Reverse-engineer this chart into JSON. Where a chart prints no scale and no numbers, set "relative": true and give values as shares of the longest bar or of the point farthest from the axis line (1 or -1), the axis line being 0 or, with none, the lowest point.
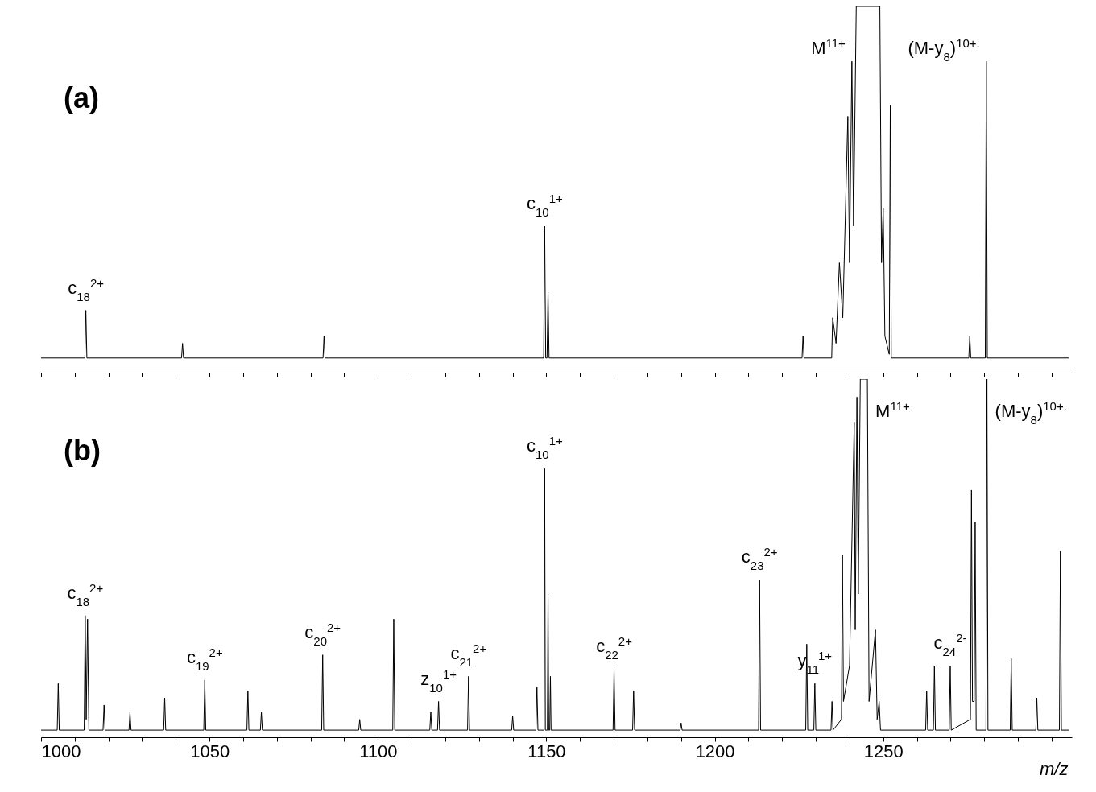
{
  "chart_data": [
    {
      "type": "line",
      "title": "(a)",
      "relative": true,
      "grid": false,
      "legend": false,
      "tick_labels": false,
      "xlim": [
        1000,
        1306
      ],
      "xticks": [
        1000,
        {
          "value": 1010,
          "label": null
        },
        {
          "value": 1020,
          "label": null
        },
        {
          "value": 1030,
          "label": null
        },
        {
          "value": 1040,
          "label": null
        },
        1050,
        {
          "value": 1060,
          "label": null
        },
        {
          "value": 1070,
          "label": null
        },
        {
          "value": 1080,
          "label": null
        },
        {
          "value": 1090,
          "label": null
        },
        1100,
        {
          "value": 1110,
          "label": null
        },
        {
          "value": 1120,
          "label": null
        },
        {
          "value": 1130,
          "label": null
        },
        {
          "value": 1140,
          "label": null
        },
        1150,
        {
          "value": 1160,
          "label": null
        },
        {
          "value": 1170,
          "label": null
        },
        {
          "value": 1180,
          "label": null
        },
        {
          "value": 1190,
          "label": null
        },
        1200,
        {
          "value": 1210,
          "label": null
        },
        {
          "value": 1220,
          "label": null
        },
        {
          "value": 1230,
          "label": null
        },
        {
          "value": 1240,
          "label": null
        },
        1250,
        {
          "value": 1260,
          "label": null
        },
        {
          "value": 1270,
          "label": null
        },
        {
          "value": 1280,
          "label": null
        },
        {
          "value": 1290,
          "label": null
        },
        {
          "value": 1300,
          "label": null
        }
      ],
      "series": [
        {
          "color": "#000000",
          "x": [
            1000,
            1013,
            1013.3,
            1013.6,
            1041.7,
            1042,
            1042.3,
            1083.7,
            1084,
            1084.3,
            1149.2,
            1149.5,
            1149.8,
            1150.2,
            1150.5,
            1150.8,
            1225.9,
            1226.2,
            1226.5,
            1234.7,
            1235,
            1236,
            1237,
            1238,
            1239.5,
            1240,
            1240.7,
            1241.2,
            1242,
            1249,
            1249.5,
            1250,
            1250.5,
            1251.8,
            1252.1,
            1252.4,
            1275.4,
            1275.7,
            1276,
            1280.3,
            1280.6,
            1280.9,
            1305
          ],
          "values": [
            0.04,
            0.04,
            0.17,
            0.04,
            0.04,
            0.08,
            0.04,
            0.04,
            0.1,
            0.04,
            0.04,
            0.4,
            0.04,
            0.04,
            0.22,
            0.04,
            0.04,
            0.1,
            0.04,
            0.04,
            0.15,
            0.08,
            0.3,
            0.15,
            0.7,
            0.3,
            0.85,
            0.4,
            1,
            1,
            0.3,
            0.45,
            0.1,
            0.05,
            0.73,
            0.04,
            0.04,
            0.1,
            0.04,
            0.04,
            0.85,
            0.04,
            0.04
          ]
        }
      ],
      "annotations": [
        {
          "text": "c$_{18}$$^{2+}$",
          "x": 1013.3,
          "y": 0.17
        },
        {
          "text": "c$_{10}$$^{1+}$",
          "x": 1149.5,
          "y": 0.4
        },
        {
          "text": "M$^{11+}$",
          "x": 1240.7,
          "y": 0.85
        },
        {
          "text": "(M-y$_{8}$)$^{10+.}$",
          "x": 1280.6,
          "y": 0.85
        }
      ]
    },
    {
      "type": "line",
      "title": "(b)",
      "relative": true,
      "grid": false,
      "legend": false,
      "tick_labels": "x",
      "xlabel": "m/z",
      "xlim": [
        1000,
        1306
      ],
      "xticks": [
        1000,
        {
          "value": 1010,
          "label": null
        },
        {
          "value": 1020,
          "label": null
        },
        {
          "value": 1030,
          "label": null
        },
        {
          "value": 1040,
          "label": null
        },
        1050,
        {
          "value": 1060,
          "label": null
        },
        {
          "value": 1070,
          "label": null
        },
        {
          "value": 1080,
          "label": null
        },
        {
          "value": 1090,
          "label": null
        },
        1100,
        {
          "value": 1110,
          "label": null
        },
        {
          "value": 1120,
          "label": null
        },
        {
          "value": 1130,
          "label": null
        },
        {
          "value": 1140,
          "label": null
        },
        1150,
        {
          "value": 1160,
          "label": null
        },
        {
          "value": 1170,
          "label": null
        },
        {
          "value": 1180,
          "label": null
        },
        {
          "value": 1190,
          "label": null
        },
        1200,
        {
          "value": 1210,
          "label": null
        },
        {
          "value": 1220,
          "label": null
        },
        {
          "value": 1230,
          "label": null
        },
        {
          "value": 1240,
          "label": null
        },
        1250,
        {
          "value": 1260,
          "label": null
        },
        {
          "value": 1270,
          "label": null
        },
        {
          "value": 1280,
          "label": null
        },
        {
          "value": 1290,
          "label": null
        },
        {
          "value": 1300,
          "label": null
        }
      ],
      "series": [
        {
          "color": "#000000",
          "x": [
            1000,
            1004.8,
            1005.1,
            1005.4,
            1012.8,
            1013.1,
            1013.4,
            1013.8,
            1014.2,
            1018.4,
            1018.7,
            1019,
            1026.1,
            1026.4,
            1026.7,
            1036.4,
            1036.7,
            1037,
            1048.3,
            1048.6,
            1048.9,
            1061.1,
            1061.4,
            1061.7,
            1065.1,
            1065.4,
            1065.7,
            1083.3,
            1083.6,
            1083.9,
            1094.3,
            1094.6,
            1094.9,
            1104.4,
            1104.7,
            1105,
            1115.4,
            1115.7,
            1116,
            1117.7,
            1118,
            1118.3,
            1126.6,
            1126.9,
            1127.2,
            1139.7,
            1140,
            1140.3,
            1146.9,
            1147.2,
            1147.5,
            1149.3,
            1149.5,
            1149.7,
            1150.3,
            1150.5,
            1150.7,
            1151,
            1151.2,
            1151.4,
            1169.8,
            1170.1,
            1170.4,
            1175.6,
            1175.9,
            1176.2,
            1189.7,
            1190,
            1190.3,
            1213,
            1213.3,
            1213.6,
            1227,
            1227.3,
            1227.6,
            1229.4,
            1229.7,
            1230,
            1234.5,
            1234.8,
            1235.1,
            1237.6,
            1237.9,
            1238.2,
            1240,
            1241.4,
            1241.7,
            1242.2,
            1242.6,
            1243.2,
            1245.3,
            1245.8,
            1247.7,
            1248.2,
            1248.8,
            1249.2,
            1262.6,
            1262.9,
            1263.2,
            1264.9,
            1265.2,
            1265.5,
            1269.6,
            1269.9,
            1270.2,
            1275.9,
            1276.2,
            1276.5,
            1277,
            1277.3,
            1277.6,
            1280.5,
            1280.8,
            1281.1,
            1287.7,
            1288,
            1288.3,
            1295.3,
            1295.6,
            1295.9,
            1302.3,
            1302.6,
            1302.9,
            1305
          ],
          "values": [
            0.02,
            0.02,
            0.15,
            0.02,
            0.02,
            0.34,
            0.05,
            0.33,
            0.02,
            0.02,
            0.09,
            0.02,
            0.02,
            0.07,
            0.02,
            0.02,
            0.11,
            0.02,
            0.02,
            0.16,
            0.02,
            0.02,
            0.13,
            0.02,
            0.02,
            0.07,
            0.02,
            0.02,
            0.23,
            0.02,
            0.02,
            0.05,
            0.02,
            0.02,
            0.33,
            0.02,
            0.02,
            0.07,
            0.02,
            0.02,
            0.1,
            0.02,
            0.02,
            0.17,
            0.02,
            0.02,
            0.06,
            0.02,
            0.02,
            0.14,
            0.02,
            0.02,
            0.75,
            0.02,
            0.02,
            0.4,
            0.02,
            0.02,
            0.17,
            0.02,
            0.02,
            0.19,
            0.02,
            0.02,
            0.13,
            0.02,
            0.02,
            0.04,
            0.02,
            0.02,
            0.44,
            0.02,
            0.02,
            0.26,
            0.02,
            0.02,
            0.15,
            0.02,
            0.02,
            0.1,
            0.02,
            0.05,
            0.51,
            0.1,
            0.2,
            0.88,
            0.3,
            0.95,
            0.4,
            1,
            1,
            0.1,
            0.3,
            0.05,
            0.1,
            0.02,
            0.02,
            0.13,
            0.02,
            0.02,
            0.2,
            0.02,
            0.02,
            0.2,
            0.02,
            0.05,
            0.69,
            0.1,
            0.1,
            0.6,
            0.02,
            0.02,
            1,
            0.02,
            0.02,
            0.22,
            0.02,
            0.02,
            0.11,
            0.02,
            0.02,
            0.52,
            0.02,
            0.02
          ]
        }
      ],
      "annotations": [
        {
          "text": "c$_{18}$$^{2+}$",
          "x": 1013.1,
          "y": 0.34
        },
        {
          "text": "c$_{19}$$^{2+}$",
          "x": 1048.6,
          "y": 0.16
        },
        {
          "text": "c$_{20}$$^{2+}$",
          "x": 1083.6,
          "y": 0.23
        },
        {
          "text": "z$_{10}$$^{1+}$",
          "x": 1118,
          "y": 0.1
        },
        {
          "text": "c$_{21}$$^{2+}$",
          "x": 1126.9,
          "y": 0.17
        },
        {
          "text": "c$_{10}$$^{1+}$",
          "x": 1149.5,
          "y": 0.75
        },
        {
          "text": "c$_{22}$$^{2+}$",
          "x": 1170.1,
          "y": 0.19
        },
        {
          "text": "c$_{23}$$^{2+}$",
          "x": 1213.3,
          "y": 0.44
        },
        {
          "text": "y$_{11}$$^{1+}$",
          "x": 1229.7,
          "y": 0.15
        },
        {
          "text": "M$^{11+}$",
          "x": 1245.3,
          "y": 1
        },
        {
          "text": "c$_{24}$$^{2-}$",
          "x": 1269.9,
          "y": 0.2
        },
        {
          "text": "(M-y$_{8}$)$^{10+.}$",
          "x": 1280.8,
          "y": 1
        }
      ]
    }
  ]
}
